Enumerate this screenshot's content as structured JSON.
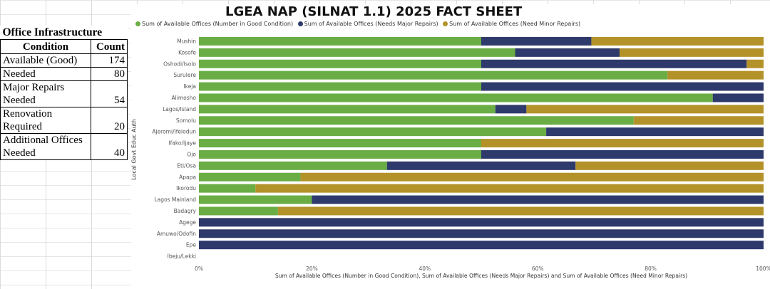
{
  "table": {
    "title": "Office Infrastructure",
    "header": {
      "condition": "Condition",
      "count": "Count"
    },
    "rows": [
      {
        "label": [
          "Available (Good)"
        ],
        "value": "174"
      },
      {
        "label": [
          "Needed"
        ],
        "value": "80"
      },
      {
        "label": [
          "Major Repairs",
          "Needed"
        ],
        "value": "54"
      },
      {
        "label": [
          "Renovation",
          "Required"
        ],
        "value": "20"
      },
      {
        "label": [
          "Additional Offices",
          "Needed"
        ],
        "value": "40"
      }
    ]
  },
  "colors": {
    "good": "#6aad45",
    "major": "#2e3a6c",
    "minor": "#b4922a"
  },
  "chart_data": {
    "type": "bar",
    "orientation": "horizontal",
    "stacked": "percent",
    "title": "LGEA NAP (SILNAT 1.1) 2025 FACT SHEET",
    "xlabel": "Sum of Available Offices (Number in Good Condition), Sum of Available Offices (Needs Major Repairs) and Sum of Available Offices (Need Minor Repairs)",
    "ylabel": "Local Govt Educ Auth",
    "xlim": [
      0,
      100
    ],
    "x_ticks": [
      "0%",
      "20%",
      "40%",
      "60%",
      "80%",
      "100%"
    ],
    "legend_position": "top",
    "categories": [
      "Mushin",
      "Kosofe",
      "Oshodi/Isolo",
      "Surulere",
      "Ikeja",
      "Alimosho",
      "Lagos/Island",
      "Somolu",
      "Ajeromi/Ifelodun",
      "Ifako/Ijaye",
      "Ojo",
      "Eti/Osa",
      "Apapa",
      "Ikorodu",
      "Lagos Mainland",
      "Badagry",
      "Agege",
      "Amuwo/Odofin",
      "Epe",
      "Ibeju/Lekki"
    ],
    "series": [
      {
        "name": "Sum of Available Offices (Number in Good Condition)",
        "color": "#6aad45",
        "values": [
          50,
          56,
          50,
          83,
          50,
          91,
          52.5,
          77,
          61.5,
          50,
          50,
          33.3,
          18,
          10,
          20,
          14,
          0,
          0,
          0,
          0
        ]
      },
      {
        "name": "Sum of Available Offices (Needs Major Repairs)",
        "color": "#2e3a6c",
        "values": [
          19.5,
          18.5,
          47,
          0,
          50,
          9,
          5.5,
          0,
          38.5,
          0,
          50,
          33.4,
          0,
          0,
          80,
          0,
          100,
          100,
          100,
          0
        ]
      },
      {
        "name": "Sum of Available Offices (Need Minor Repairs)",
        "color": "#b4922a",
        "values": [
          30.5,
          25.5,
          3,
          17,
          0,
          0,
          42,
          23,
          0,
          50,
          0,
          33.3,
          82,
          90,
          0,
          86,
          0,
          0,
          0,
          0
        ]
      }
    ]
  }
}
